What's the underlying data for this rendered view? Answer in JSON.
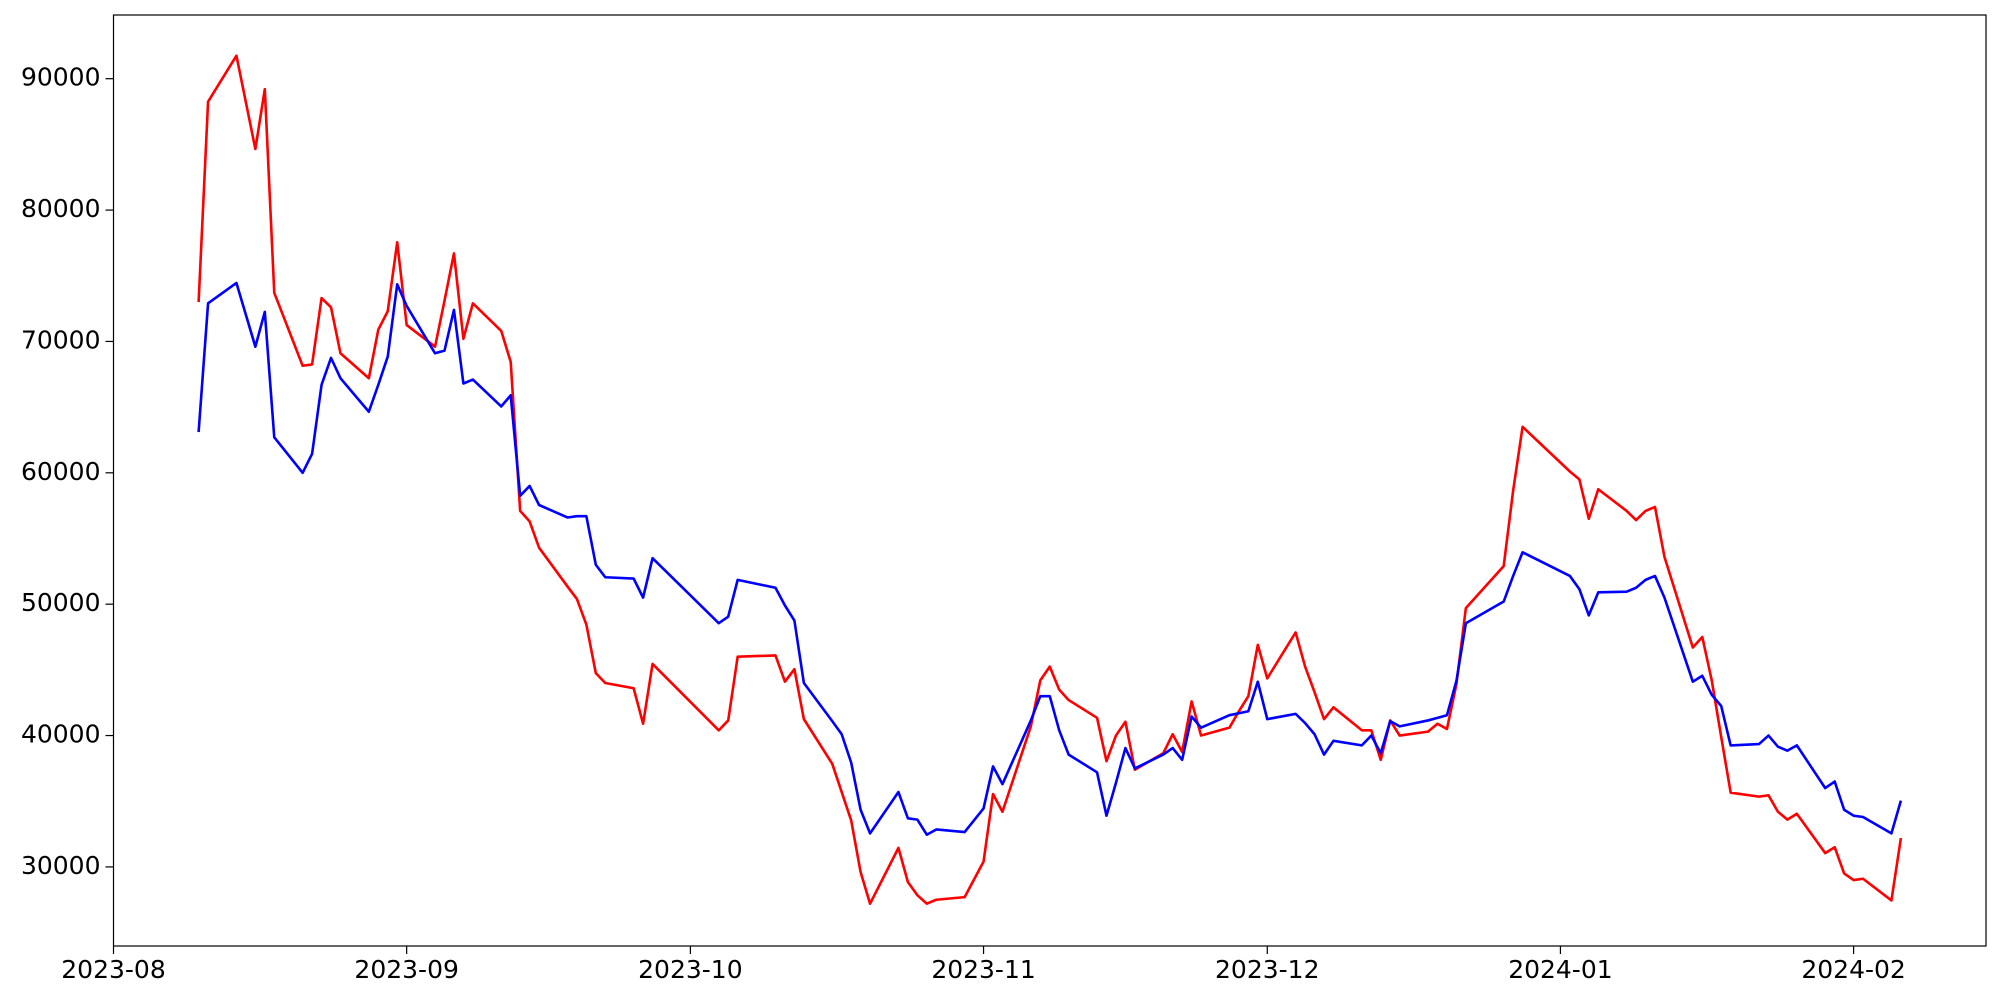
{
  "chart_data": {
    "type": "line",
    "x": [
      "2023-08-10",
      "2023-08-11",
      "2023-08-14",
      "2023-08-16",
      "2023-08-17",
      "2023-08-18",
      "2023-08-21",
      "2023-08-22",
      "2023-08-23",
      "2023-08-24",
      "2023-08-25",
      "2023-08-28",
      "2023-08-29",
      "2023-08-30",
      "2023-08-31",
      "2023-09-01",
      "2023-09-04",
      "2023-09-05",
      "2023-09-06",
      "2023-09-07",
      "2023-09-08",
      "2023-09-11",
      "2023-09-12",
      "2023-09-13",
      "2023-09-14",
      "2023-09-15",
      "2023-09-18",
      "2023-09-19",
      "2023-09-20",
      "2023-09-21",
      "2023-09-22",
      "2023-09-25",
      "2023-09-26",
      "2023-09-27",
      "2023-10-04",
      "2023-10-05",
      "2023-10-06",
      "2023-10-10",
      "2023-10-11",
      "2023-10-12",
      "2023-10-13",
      "2023-10-16",
      "2023-10-17",
      "2023-10-18",
      "2023-10-19",
      "2023-10-20",
      "2023-10-23",
      "2023-10-24",
      "2023-10-25",
      "2023-10-26",
      "2023-10-27",
      "2023-10-30",
      "2023-11-01",
      "2023-11-02",
      "2023-11-03",
      "2023-11-06",
      "2023-11-07",
      "2023-11-08",
      "2023-11-09",
      "2023-11-10",
      "2023-11-13",
      "2023-11-14",
      "2023-11-15",
      "2023-11-16",
      "2023-11-17",
      "2023-11-20",
      "2023-11-21",
      "2023-11-22",
      "2023-11-23",
      "2023-11-24",
      "2023-11-27",
      "2023-11-28",
      "2023-11-29",
      "2023-11-30",
      "2023-12-01",
      "2023-12-04",
      "2023-12-05",
      "2023-12-06",
      "2023-12-07",
      "2023-12-08",
      "2023-12-11",
      "2023-12-12",
      "2023-12-13",
      "2023-12-14",
      "2023-12-15",
      "2023-12-18",
      "2023-12-19",
      "2023-12-20",
      "2023-12-21",
      "2023-12-22",
      "2023-12-26",
      "2023-12-27",
      "2023-12-28",
      "2024-01-02",
      "2024-01-03",
      "2024-01-04",
      "2024-01-05",
      "2024-01-08",
      "2024-01-09",
      "2024-01-10",
      "2024-01-11",
      "2024-01-12",
      "2024-01-15",
      "2024-01-16",
      "2024-01-17",
      "2024-01-18",
      "2024-01-19",
      "2024-01-22",
      "2024-01-23",
      "2024-01-24",
      "2024-01-25",
      "2024-01-26",
      "2024-01-29",
      "2024-01-30",
      "2024-01-31",
      "2024-02-01",
      "2024-02-02",
      "2024-02-05",
      "2024-02-06"
    ],
    "series": [
      {
        "color": "#ff0000",
        "values": [
          73000,
          88250,
          91750,
          84650,
          89200,
          73700,
          68150,
          68250,
          73300,
          72600,
          69100,
          67200,
          70900,
          72300,
          77550,
          71250,
          69600,
          73100,
          76700,
          70200,
          72900,
          70800,
          68450,
          57100,
          56300,
          54300,
          51350,
          50400,
          48450,
          44750,
          44000,
          43600,
          40900,
          45450,
          40400,
          41150,
          46000,
          46100,
          44100,
          45050,
          41250,
          37850,
          35700,
          33550,
          29600,
          27200,
          31450,
          28850,
          27850,
          27200,
          27500,
          27700,
          30400,
          35550,
          34200,
          40700,
          44200,
          45250,
          43500,
          42700,
          41350,
          38050,
          40000,
          41050,
          37400,
          38650,
          40100,
          38750,
          42600,
          40000,
          40600,
          41850,
          43000,
          46900,
          44350,
          47850,
          45250,
          43300,
          41250,
          42150,
          40400,
          40400,
          38150,
          41150,
          40000,
          40300,
          40900,
          40500,
          43900,
          49700,
          52900,
          58650,
          63500,
          60100,
          59500,
          56500,
          58750,
          57100,
          56400,
          57100,
          57400,
          53600,
          46700,
          47500,
          44200,
          39900,
          35650,
          35350,
          35450,
          34200,
          33600,
          34050,
          31050,
          31500,
          29500,
          29000,
          29100,
          27450,
          32200
        ]
      },
      {
        "color": "#0000ff",
        "values": [
          63100,
          72900,
          74450,
          69600,
          72250,
          62700,
          60000,
          61450,
          66700,
          68750,
          67200,
          64650,
          66700,
          68850,
          74350,
          72700,
          69100,
          69300,
          72400,
          66800,
          67100,
          65050,
          65900,
          58250,
          59000,
          57550,
          56600,
          56700,
          56700,
          53000,
          52050,
          51950,
          50500,
          53500,
          48550,
          49050,
          51850,
          51250,
          49900,
          48750,
          44000,
          41100,
          40100,
          37950,
          34350,
          32550,
          35700,
          33700,
          33600,
          32450,
          32850,
          32650,
          34450,
          37650,
          36300,
          41150,
          43000,
          43000,
          40400,
          38550,
          37200,
          33900,
          36400,
          39050,
          37500,
          38550,
          39050,
          38150,
          41450,
          40600,
          41550,
          41700,
          41850,
          44100,
          41250,
          41650,
          40950,
          40100,
          38550,
          39600,
          39250,
          40000,
          38650,
          41100,
          40700,
          41150,
          41350,
          41550,
          44150,
          48550,
          50200,
          52150,
          53950,
          52150,
          51150,
          49150,
          50900,
          50950,
          51250,
          51850,
          52150,
          50500,
          44100,
          44550,
          43100,
          42250,
          39250,
          39350,
          40000,
          39150,
          38850,
          39250,
          36000,
          36500,
          34350,
          33900,
          33800,
          32550,
          35050
        ]
      }
    ],
    "xlim": [
      "2023-08-01",
      "2024-02-15"
    ],
    "xticks": [
      {
        "value": "2023-08-01",
        "label": "2023-08"
      },
      {
        "value": "2023-09-01",
        "label": "2023-09"
      },
      {
        "value": "2023-10-01",
        "label": "2023-10"
      },
      {
        "value": "2023-11-01",
        "label": "2023-11"
      },
      {
        "value": "2023-12-01",
        "label": "2023-12"
      },
      {
        "value": "2024-01-01",
        "label": "2024-01"
      },
      {
        "value": "2024-02-01",
        "label": "2024-02"
      }
    ],
    "ylim": [
      23980,
      94850
    ],
    "yticks": [
      30000,
      40000,
      50000,
      60000,
      70000,
      80000,
      90000
    ]
  }
}
